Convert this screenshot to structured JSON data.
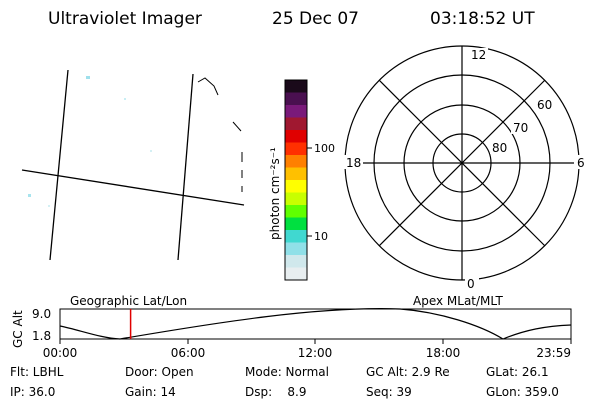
{
  "header": {
    "title": "Ultraviolet Imager",
    "date": "25 Dec 07",
    "time": "03:18:52 UT"
  },
  "colorbar": {
    "label": "photon cm⁻²s⁻¹",
    "ticks": [
      "100",
      "10"
    ],
    "colors": [
      "#1a0a1a",
      "#4a1050",
      "#7a1a7a",
      "#a01830",
      "#e00000",
      "#ff3000",
      "#ff8000",
      "#ffc000",
      "#ffff00",
      "#c8ff00",
      "#60ff00",
      "#00e040",
      "#40d8d0",
      "#90e0e8",
      "#d0e8ec",
      "#e8eef0"
    ]
  },
  "polar": {
    "label_top": "12",
    "label_bottom": "0",
    "label_left": "18",
    "label_right": "6",
    "ring_labels": [
      "60",
      "70",
      "80"
    ]
  },
  "timeline": {
    "y_label": "GC Alt",
    "y_ticks": [
      "9.0",
      "1.8"
    ],
    "left_caption": "Geographic Lat/Lon",
    "right_caption": "Apex MLat/MLT",
    "x_ticks": [
      "00:00",
      "06:00",
      "12:00",
      "18:00",
      "23:59"
    ],
    "current_time_fraction": 0.1381,
    "marker_color": "#e00000"
  },
  "status": {
    "flt": "Flt: LBHL",
    "door": "Door: Open",
    "mode": "Mode: Normal",
    "gc_alt": "GC Alt: 2.9 Re",
    "glat": "GLat:  26.1",
    "ip": "IP: 36.0",
    "gain": "Gain: 14",
    "dsp": "Dsp:    8.9",
    "seq": "Seq: 39",
    "glon": "GLon: 359.0"
  }
}
